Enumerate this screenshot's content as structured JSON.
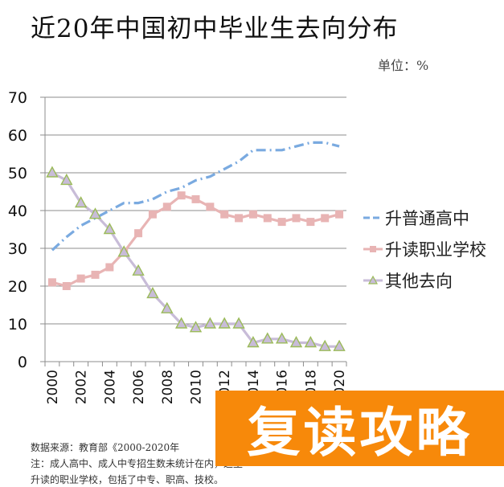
{
  "header": {
    "title": "近20年中国初中毕业生去向分布",
    "unit": "单位：%"
  },
  "footnotes": [
    "数据来源：教育部《2000-2020年",
    "注：成人高中、成人中专招生数未统计在内，这里",
    "升读的职业学校，包括了中专、职高、技校。"
  ],
  "watermark": {
    "text": "复读攻略",
    "color": "#f7890a"
  },
  "chart_data": {
    "type": "line",
    "title": "近20年中国初中毕业生去向分布",
    "xlabel": "",
    "ylabel": "单位：%",
    "ylim": [
      0,
      70
    ],
    "yticks": [
      0,
      10,
      20,
      30,
      40,
      50,
      60,
      70
    ],
    "grid": true,
    "legend_position": "right",
    "x": [
      2000,
      2001,
      2002,
      2003,
      2004,
      2005,
      2006,
      2007,
      2008,
      2009,
      2010,
      2011,
      2012,
      2013,
      2014,
      2015,
      2016,
      2017,
      2018,
      2019,
      2020
    ],
    "xtick_labels": [
      "2000",
      "2002",
      "2004",
      "2006",
      "2008",
      "2010",
      "2012",
      "2014",
      "2016",
      "2018",
      "2020"
    ],
    "series": [
      {
        "name": "升普通高中",
        "color": "#7aaae0",
        "style": "dashed",
        "marker": "none",
        "values": [
          29.5,
          33,
          36,
          38,
          40,
          42,
          42,
          43,
          45,
          46,
          48,
          49,
          51,
          53,
          56,
          56,
          56,
          57,
          58,
          58,
          57
        ]
      },
      {
        "name": "升读职业学校",
        "color": "#e8b4b4",
        "style": "solid",
        "marker": "square",
        "values": [
          21,
          20,
          22,
          23,
          25,
          29,
          34,
          39,
          41,
          44,
          43,
          41,
          39,
          38,
          39,
          38,
          37,
          38,
          37,
          38,
          39
        ]
      },
      {
        "name": "其他去向",
        "color": "#c8bcd8",
        "style": "solid",
        "marker": "triangle",
        "marker_color": "#9bbb59",
        "values": [
          50,
          48,
          42,
          39,
          35,
          29,
          24,
          18,
          14,
          10,
          9,
          10,
          10,
          10,
          5,
          6,
          6,
          5,
          5,
          4,
          4
        ]
      }
    ]
  }
}
